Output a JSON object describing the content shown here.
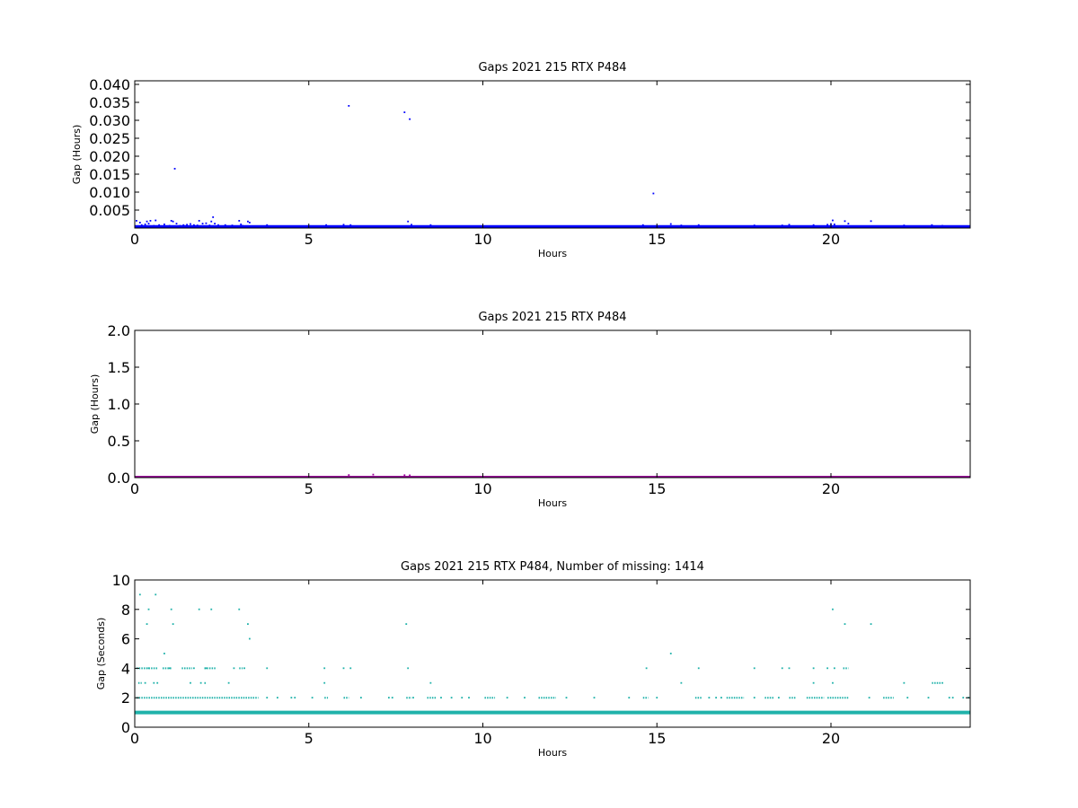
{
  "chart_data": [
    {
      "type": "scatter",
      "title": "Gaps 2021 215 RTX  P484",
      "xlabel": "Hours",
      "ylabel": "Gap (Hours)",
      "xlim": [
        0,
        24
      ],
      "ylim": [
        0,
        0.041
      ],
      "x_ticks": [
        0,
        5,
        10,
        15,
        20
      ],
      "y_ticks": [
        0.005,
        0.01,
        0.015,
        0.02,
        0.025,
        0.03,
        0.035,
        0.04
      ],
      "y_tick_labels": [
        "0.005",
        "0.010",
        "0.015",
        "0.020",
        "0.025",
        "0.030",
        "0.035",
        "0.040"
      ],
      "color": "#0000ff",
      "baseline_y": 0.0003,
      "points": [
        [
          0.05,
          0.002
        ],
        [
          0.15,
          0.0015
        ],
        [
          0.2,
          0.0008
        ],
        [
          0.3,
          0.001
        ],
        [
          0.35,
          0.0018
        ],
        [
          0.4,
          0.0012
        ],
        [
          0.45,
          0.002
        ],
        [
          0.55,
          0.0006
        ],
        [
          0.6,
          0.0021
        ],
        [
          0.7,
          0.0008
        ],
        [
          0.85,
          0.001
        ],
        [
          1.0,
          0.0006
        ],
        [
          1.05,
          0.002
        ],
        [
          1.1,
          0.0018
        ],
        [
          1.15,
          0.0165
        ],
        [
          1.2,
          0.0012
        ],
        [
          1.3,
          0.0006
        ],
        [
          1.4,
          0.0008
        ],
        [
          1.5,
          0.0009
        ],
        [
          1.6,
          0.0011
        ],
        [
          1.7,
          0.0008
        ],
        [
          1.8,
          0.0007
        ],
        [
          1.85,
          0.002
        ],
        [
          1.95,
          0.0012
        ],
        [
          2.05,
          0.0013
        ],
        [
          2.15,
          0.0007
        ],
        [
          2.2,
          0.0018
        ],
        [
          2.25,
          0.003
        ],
        [
          2.3,
          0.0012
        ],
        [
          2.4,
          0.0008
        ],
        [
          2.6,
          0.0008
        ],
        [
          2.8,
          0.0007
        ],
        [
          3.0,
          0.002
        ],
        [
          3.05,
          0.001
        ],
        [
          3.1,
          0.0006
        ],
        [
          3.25,
          0.0018
        ],
        [
          3.3,
          0.0015
        ],
        [
          3.8,
          0.0008
        ],
        [
          5.5,
          0.0008
        ],
        [
          6.0,
          0.0009
        ],
        [
          6.15,
          0.034
        ],
        [
          6.2,
          0.0008
        ],
        [
          6.8,
          0.0005
        ],
        [
          7.75,
          0.0322
        ],
        [
          7.85,
          0.0018
        ],
        [
          7.9,
          0.0303
        ],
        [
          7.95,
          0.0009
        ],
        [
          8.5,
          0.0008
        ],
        [
          14.6,
          0.0008
        ],
        [
          14.9,
          0.0096
        ],
        [
          15.4,
          0.0011
        ],
        [
          15.7,
          0.0007
        ],
        [
          16.2,
          0.0008
        ],
        [
          17.8,
          0.0007
        ],
        [
          18.6,
          0.0007
        ],
        [
          18.8,
          0.0009
        ],
        [
          19.5,
          0.0008
        ],
        [
          19.9,
          0.0009
        ],
        [
          20.0,
          0.0011
        ],
        [
          20.05,
          0.0021
        ],
        [
          20.1,
          0.001
        ],
        [
          20.4,
          0.0019
        ],
        [
          20.5,
          0.0012
        ],
        [
          21.15,
          0.0019
        ],
        [
          22.1,
          0.0007
        ],
        [
          22.9,
          0.0008
        ],
        [
          23.2,
          0.0006
        ]
      ]
    },
    {
      "type": "scatter",
      "title": "Gaps 2021 215 RTX  P484",
      "xlabel": "Hours",
      "ylabel": "Gap (Hours)",
      "xlim": [
        0,
        24
      ],
      "ylim": [
        0,
        2.0
      ],
      "x_ticks": [
        0,
        5,
        10,
        15,
        20
      ],
      "y_ticks": [
        0.0,
        0.5,
        1.0,
        1.5,
        2.0
      ],
      "y_tick_labels": [
        "0.0",
        "0.5",
        "1.0",
        "1.5",
        "2.0"
      ],
      "color": "#990099",
      "baseline_y": 0.0,
      "points": [
        [
          6.15,
          0.034
        ],
        [
          6.85,
          0.04
        ],
        [
          7.75,
          0.032
        ],
        [
          7.9,
          0.03
        ]
      ]
    },
    {
      "type": "scatter",
      "title": "Gaps 2021 215 RTX  P484, Number of missing: 1414",
      "xlabel": "Hours",
      "ylabel": "Gap (Seconds)",
      "xlim": [
        0,
        24
      ],
      "ylim": [
        0,
        10
      ],
      "x_ticks": [
        0,
        5,
        10,
        15,
        20
      ],
      "y_ticks": [
        0,
        2,
        4,
        6,
        8,
        10
      ],
      "y_tick_labels": [
        "0",
        "2",
        "4",
        "6",
        "8",
        "10"
      ],
      "color": "#20b2aa",
      "baseline_y": 1,
      "bands": [
        {
          "y": 2,
          "ranges": [
            [
              0.05,
              3.55
            ],
            [
              5.45,
              5.55
            ],
            [
              6.0,
              6.15
            ],
            [
              7.8,
              7.95
            ],
            [
              8.4,
              8.65
            ],
            [
              10.05,
              10.35
            ],
            [
              11.6,
              12.1
            ],
            [
              14.6,
              14.75
            ],
            [
              16.1,
              16.3
            ],
            [
              17.0,
              17.5
            ],
            [
              18.1,
              18.35
            ],
            [
              18.8,
              19.0
            ],
            [
              19.3,
              19.8
            ],
            [
              19.9,
              20.5
            ],
            [
              21.5,
              21.8
            ]
          ]
        },
        {
          "y": 4,
          "ranges": [
            [
              0.05,
              0.65
            ],
            [
              0.8,
              1.05
            ],
            [
              1.35,
              1.65
            ],
            [
              2.0,
              2.35
            ],
            [
              3.0,
              3.1
            ],
            [
              20.35,
              20.5
            ]
          ]
        },
        {
          "y": 3,
          "ranges": [
            [
              0.1,
              0.2
            ],
            [
              2.0,
              2.05
            ],
            [
              22.9,
              23.15
            ]
          ]
        }
      ],
      "points": [
        [
          0.15,
          9
        ],
        [
          0.6,
          9
        ],
        [
          0.4,
          8
        ],
        [
          1.05,
          8
        ],
        [
          1.85,
          8
        ],
        [
          2.2,
          8
        ],
        [
          3.0,
          8
        ],
        [
          20.05,
          8
        ],
        [
          0.35,
          7
        ],
        [
          1.1,
          7
        ],
        [
          3.25,
          7
        ],
        [
          7.8,
          7
        ],
        [
          20.4,
          7
        ],
        [
          21.15,
          7
        ],
        [
          3.3,
          6
        ],
        [
          0.85,
          5
        ],
        [
          15.4,
          5
        ],
        [
          0.4,
          4
        ],
        [
          1.0,
          4
        ],
        [
          1.7,
          4
        ],
        [
          2.05,
          4
        ],
        [
          2.85,
          4
        ],
        [
          3.15,
          4
        ],
        [
          3.8,
          4
        ],
        [
          5.45,
          4
        ],
        [
          6.0,
          4
        ],
        [
          6.2,
          4
        ],
        [
          7.85,
          4
        ],
        [
          14.7,
          4
        ],
        [
          16.2,
          4
        ],
        [
          17.8,
          4
        ],
        [
          18.6,
          4
        ],
        [
          18.8,
          4
        ],
        [
          19.5,
          4
        ],
        [
          19.9,
          4
        ],
        [
          20.1,
          4
        ],
        [
          0.3,
          3
        ],
        [
          0.55,
          3
        ],
        [
          0.65,
          3
        ],
        [
          1.6,
          3
        ],
        [
          1.9,
          3
        ],
        [
          2.7,
          3
        ],
        [
          5.45,
          3
        ],
        [
          8.5,
          3
        ],
        [
          15.7,
          3
        ],
        [
          19.5,
          3
        ],
        [
          20.05,
          3
        ],
        [
          22.1,
          3
        ],
        [
          23.2,
          3
        ],
        [
          3.8,
          2
        ],
        [
          4.1,
          2
        ],
        [
          4.5,
          2
        ],
        [
          4.6,
          2
        ],
        [
          5.1,
          2
        ],
        [
          6.5,
          2
        ],
        [
          7.3,
          2
        ],
        [
          7.4,
          2
        ],
        [
          8.0,
          2
        ],
        [
          8.8,
          2
        ],
        [
          9.1,
          2
        ],
        [
          9.4,
          2
        ],
        [
          9.6,
          2
        ],
        [
          10.7,
          2
        ],
        [
          11.2,
          2
        ],
        [
          12.4,
          2
        ],
        [
          13.2,
          2
        ],
        [
          14.2,
          2
        ],
        [
          15.0,
          2
        ],
        [
          16.5,
          2
        ],
        [
          16.7,
          2
        ],
        [
          16.85,
          2
        ],
        [
          17.8,
          2
        ],
        [
          18.5,
          2
        ],
        [
          21.1,
          2
        ],
        [
          22.2,
          2
        ],
        [
          22.8,
          2
        ],
        [
          23.4,
          2
        ],
        [
          23.5,
          2
        ],
        [
          23.8,
          2
        ],
        [
          23.95,
          2
        ]
      ]
    }
  ]
}
